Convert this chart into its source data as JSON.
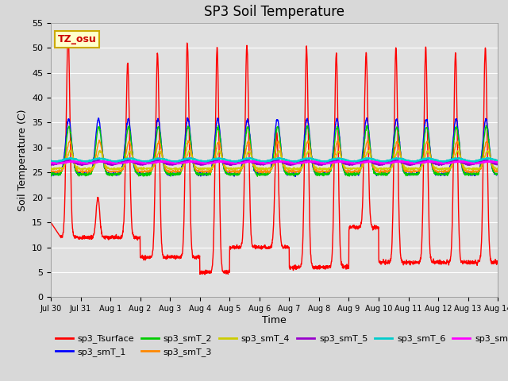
{
  "title": "SP3 Soil Temperature",
  "ylabel": "Soil Temperature (C)",
  "xlabel": "Time",
  "annotation": "TZ_osu",
  "ylim": [
    0,
    55
  ],
  "yticks": [
    0,
    5,
    10,
    15,
    20,
    25,
    30,
    35,
    40,
    45,
    50,
    55
  ],
  "fig_bg": "#d8d8d8",
  "plot_bg": "#e0e0e0",
  "grid_color": "#ffffff",
  "series_colors": {
    "sp3_Tsurface": "#ff0000",
    "sp3_smT_1": "#0000ff",
    "sp3_smT_2": "#00cc00",
    "sp3_smT_3": "#ff8800",
    "sp3_smT_4": "#cccc00",
    "sp3_smT_5": "#9900cc",
    "sp3_smT_6": "#00cccc",
    "sp3_smT_7": "#ff00ff"
  },
  "day_labels": [
    "Jul 30",
    "Jul 31",
    "Aug 1",
    "Aug 2",
    "Aug 3",
    "Aug 4",
    "Aug 5",
    "Aug 6",
    "Aug 7",
    "Aug 8",
    "Aug 9",
    "Aug 10",
    "Aug 11",
    "Aug 12",
    "Aug 13",
    "Aug 14"
  ],
  "n_days": 15,
  "spd": 144
}
